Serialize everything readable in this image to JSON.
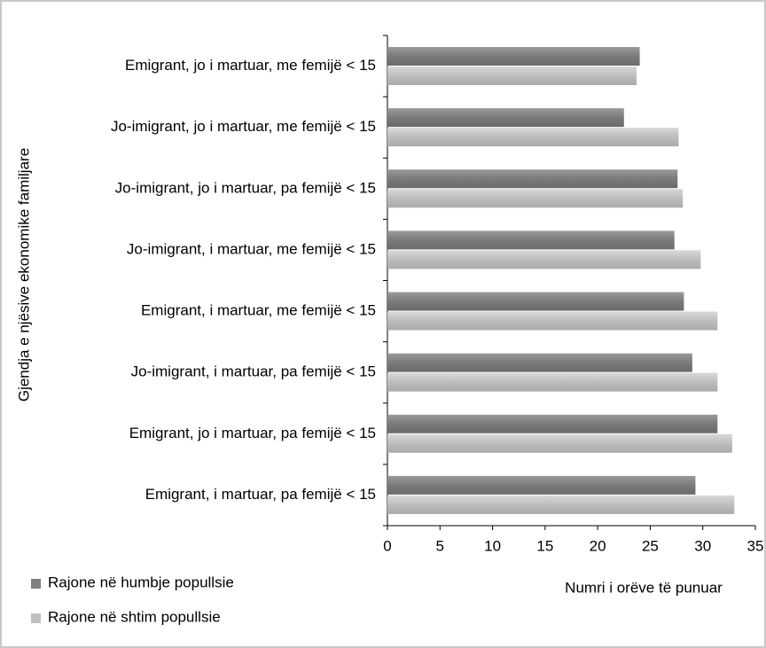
{
  "chart_data": {
    "type": "hbar",
    "y_label": "Gjendja e njësive ekonomike familjare",
    "x_label": "Numri i orëve të punuar",
    "categories": [
      "Emigrant, jo i martuar, me femijë < 15",
      "Jo-imigrant, jo i martuar, me femijë < 15",
      "Jo-imigrant, jo i martuar, pa femijë < 15",
      "Jo-imigrant, i martuar, me femijë < 15",
      "Emigrant, i martuar, me femijë < 15",
      "Jo-imigrant, i martuar, pa femijë < 15",
      "Emigrant, jo i martuar, pa femijë < 15",
      "Emigrant, i martuar, pa femijë < 15"
    ],
    "series": [
      {
        "name": "Rajone në humbje popullsie",
        "color": "#808080",
        "values": [
          24.0,
          22.5,
          27.6,
          27.3,
          28.2,
          29.0,
          31.4,
          29.3
        ]
      },
      {
        "name": "Rajone në shtim popullsie",
        "color": "#c0c0c0",
        "values": [
          23.7,
          27.7,
          28.1,
          29.8,
          31.4,
          31.4,
          32.8,
          33.0
        ]
      }
    ],
    "xlim": [
      0,
      35
    ],
    "xticks": [
      0,
      5,
      10,
      15,
      20,
      25,
      30,
      35
    ]
  }
}
